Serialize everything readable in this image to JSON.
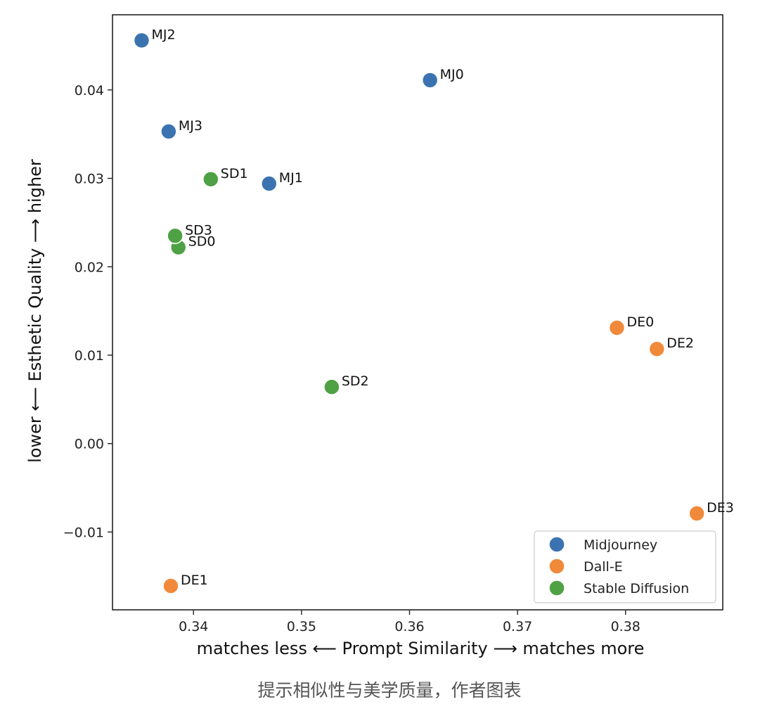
{
  "chart_data": {
    "type": "scatter",
    "xlabel": "matches less ⟵ Prompt Similarity ⟶ matches more",
    "ylabel": "lower ⟵ Esthetic Quality ⟶ higher",
    "xlim": [
      0.3325,
      0.389
    ],
    "ylim": [
      -0.0188,
      0.0485
    ],
    "xticks": [
      0.34,
      0.35,
      0.36,
      0.37,
      0.38
    ],
    "xtick_labels": [
      "0.34",
      "0.35",
      "0.36",
      "0.37",
      "0.38"
    ],
    "yticks": [
      -0.01,
      0.0,
      0.01,
      0.02,
      0.03,
      0.04
    ],
    "ytick_labels": [
      "−0.01",
      "0.00",
      "0.01",
      "0.02",
      "0.03",
      "0.04"
    ],
    "grid": false,
    "legend_position": "lower-right",
    "series": [
      {
        "name": "Midjourney",
        "color": "#3a73b0",
        "points": [
          {
            "label": "MJ0",
            "x": 0.3619,
            "y": 0.0411
          },
          {
            "label": "MJ1",
            "x": 0.347,
            "y": 0.0294
          },
          {
            "label": "MJ2",
            "x": 0.3352,
            "y": 0.0456
          },
          {
            "label": "MJ3",
            "x": 0.3377,
            "y": 0.0353
          }
        ]
      },
      {
        "name": "Dall-E",
        "color": "#f0893a",
        "points": [
          {
            "label": "DE0",
            "x": 0.3792,
            "y": 0.0131
          },
          {
            "label": "DE1",
            "x": 0.3379,
            "y": -0.0161
          },
          {
            "label": "DE2",
            "x": 0.3829,
            "y": 0.0107
          },
          {
            "label": "DE3",
            "x": 0.3866,
            "y": -0.0079
          }
        ]
      },
      {
        "name": "Stable Diffusion",
        "color": "#4ea144",
        "points": [
          {
            "label": "SD0",
            "x": 0.3386,
            "y": 0.0222
          },
          {
            "label": "SD1",
            "x": 0.3416,
            "y": 0.0299
          },
          {
            "label": "SD2",
            "x": 0.3528,
            "y": 0.0064
          },
          {
            "label": "SD3",
            "x": 0.3383,
            "y": 0.0235
          }
        ]
      }
    ]
  },
  "caption": "提示相似性与美学质量，作者图表"
}
